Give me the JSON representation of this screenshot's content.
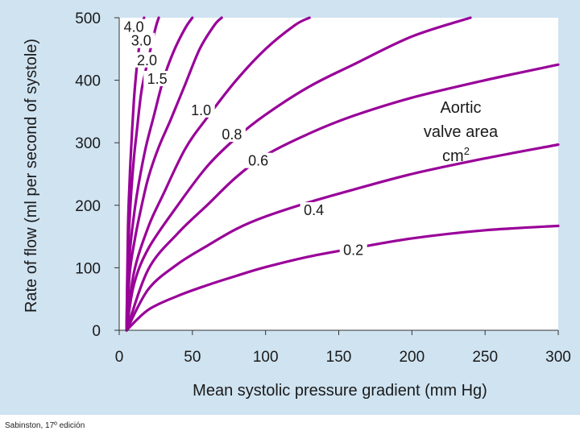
{
  "chart_data": {
    "type": "line",
    "xlabel": "Mean systolic pressure gradient (mm Hg)",
    "ylabel": "Rate of flow (ml per second of systole)",
    "xlim": [
      0,
      300
    ],
    "ylim": [
      0,
      500
    ],
    "xticks": [
      0,
      50,
      100,
      150,
      200,
      250,
      300
    ],
    "yticks": [
      0,
      100,
      200,
      300,
      400,
      500
    ],
    "grid": false,
    "curve_color": "#990099",
    "highlight_label_color": "#990099",
    "annotation": {
      "line1": "Aortic",
      "line2": "valve area",
      "unit_base": "cm",
      "unit_sup": "2"
    },
    "series": [
      {
        "name": "4.0",
        "points": [
          [
            5,
            0
          ],
          [
            6,
            164
          ],
          [
            7,
            232
          ],
          [
            8,
            284
          ],
          [
            10,
            367
          ],
          [
            12,
            421
          ],
          [
            14,
            460
          ],
          [
            16,
            491
          ],
          [
            17,
            500
          ]
        ]
      },
      {
        "name": "3.0",
        "points": [
          [
            5,
            0
          ],
          [
            6,
            123
          ],
          [
            8,
            213
          ],
          [
            10,
            275
          ],
          [
            12,
            318
          ],
          [
            15,
            380
          ],
          [
            18,
            415
          ],
          [
            21,
            446
          ],
          [
            25,
            485
          ],
          [
            27,
            500
          ]
        ]
      },
      {
        "name": "2.0",
        "points": [
          [
            5,
            0
          ],
          [
            7,
            116
          ],
          [
            10,
            183
          ],
          [
            13,
            230
          ],
          [
            18,
            291
          ],
          [
            24,
            346
          ],
          [
            30,
            400
          ],
          [
            37,
            445
          ],
          [
            45,
            483
          ],
          [
            50,
            500
          ]
        ]
      },
      {
        "name": "1.5",
        "points": [
          [
            5,
            0
          ],
          [
            7,
            87
          ],
          [
            10,
            137
          ],
          [
            15,
            196
          ],
          [
            20,
            245
          ],
          [
            27,
            293
          ],
          [
            35,
            336
          ],
          [
            45,
            393
          ],
          [
            55,
            450
          ],
          [
            65,
            488
          ],
          [
            70,
            500
          ]
        ]
      },
      {
        "name": "1.0",
        "points": [
          [
            5,
            0
          ],
          [
            10,
            92
          ],
          [
            20,
            166
          ],
          [
            30,
            217
          ],
          [
            45,
            290
          ],
          [
            60,
            340
          ],
          [
            80,
            400
          ],
          [
            100,
            450
          ],
          [
            120,
            488
          ],
          [
            130,
            500
          ]
        ]
      },
      {
        "name": "0.8",
        "points": [
          [
            5,
            0
          ],
          [
            10,
            73
          ],
          [
            20,
            131
          ],
          [
            40,
            200
          ],
          [
            60,
            262
          ],
          [
            80,
            308
          ],
          [
            100,
            345
          ],
          [
            130,
            390
          ],
          [
            160,
            425
          ],
          [
            200,
            470
          ],
          [
            240,
            500
          ]
        ]
      },
      {
        "name": "0.6",
        "points": [
          [
            5,
            0
          ],
          [
            20,
            98
          ],
          [
            40,
            155
          ],
          [
            60,
            200
          ],
          [
            80,
            245
          ],
          [
            100,
            280
          ],
          [
            130,
            315
          ],
          [
            160,
            343
          ],
          [
            200,
            372
          ],
          [
            250,
            400
          ],
          [
            300,
            425
          ]
        ]
      },
      {
        "name": "0.4",
        "points": [
          [
            5,
            0
          ],
          [
            20,
            66
          ],
          [
            40,
            106
          ],
          [
            60,
            135
          ],
          [
            80,
            162
          ],
          [
            100,
            182
          ],
          [
            130,
            205
          ],
          [
            160,
            225
          ],
          [
            200,
            250
          ],
          [
            250,
            275
          ],
          [
            300,
            297
          ]
        ]
      },
      {
        "name": "0.2",
        "points": [
          [
            5,
            0
          ],
          [
            20,
            33
          ],
          [
            40,
            55
          ],
          [
            60,
            72
          ],
          [
            80,
            87
          ],
          [
            100,
            101
          ],
          [
            130,
            118
          ],
          [
            160,
            131
          ],
          [
            200,
            147
          ],
          [
            250,
            160
          ],
          [
            300,
            167
          ]
        ]
      }
    ],
    "curve_labels": [
      {
        "text": "4.0",
        "x": 10,
        "y": 485,
        "highlight": false
      },
      {
        "text": "3.0",
        "x": 15,
        "y": 463,
        "highlight": false
      },
      {
        "text": "2.0",
        "x": 19,
        "y": 432,
        "highlight": false
      },
      {
        "text": "1.5",
        "x": 26,
        "y": 402,
        "highlight": false
      },
      {
        "text": "1.0",
        "x": 56,
        "y": 352,
        "highlight": false
      },
      {
        "text": "0.8",
        "x": 77,
        "y": 313,
        "highlight": false
      },
      {
        "text": "0.6",
        "x": 95,
        "y": 271,
        "highlight": false
      },
      {
        "text": "0.4",
        "x": 133,
        "y": 192,
        "highlight": false
      },
      {
        "text": "0.2",
        "x": 160,
        "y": 128,
        "highlight": true
      }
    ]
  },
  "source_credit": "Sabinston, 17º edición"
}
